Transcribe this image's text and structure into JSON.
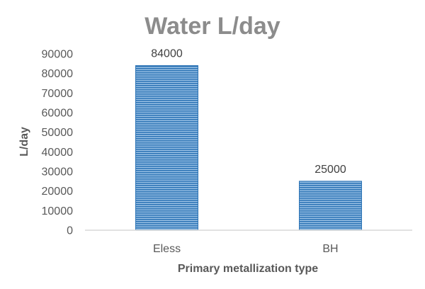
{
  "chart_data": {
    "type": "bar",
    "title": "Water L/day",
    "xlabel": "Primary metallization type",
    "ylabel": "L/day",
    "categories": [
      "Eless",
      "BH"
    ],
    "values": [
      84000,
      25000
    ],
    "data_labels": [
      "84000",
      "25000"
    ],
    "ylim": [
      0,
      90000
    ],
    "yticks": [
      0,
      10000,
      20000,
      30000,
      40000,
      50000,
      60000,
      70000,
      80000,
      90000
    ],
    "grid": false,
    "legend": "none",
    "bar_color": "#2e75b6",
    "bar_pattern": "horizontal-stripes"
  }
}
